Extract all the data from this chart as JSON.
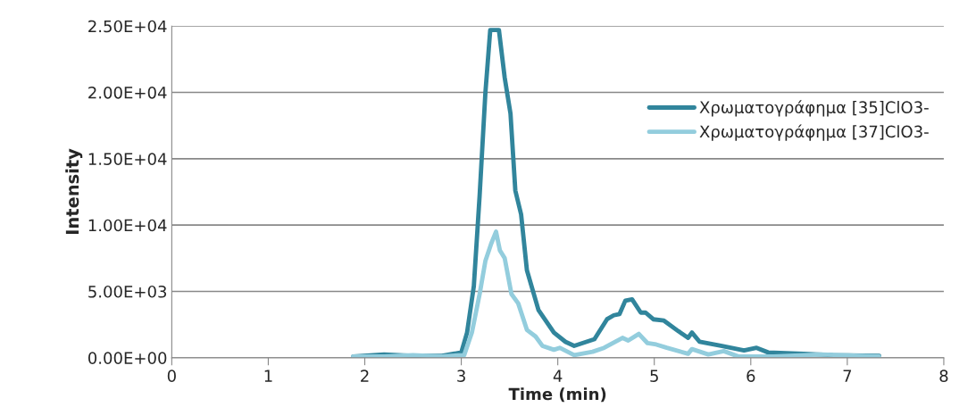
{
  "chart_data": {
    "type": "line",
    "xlabel": "Time (min)",
    "ylabel": "Intensity",
    "xlim": [
      0,
      8
    ],
    "xticks": [
      0,
      1,
      2,
      3,
      4,
      5,
      6,
      7,
      8
    ],
    "ylim": [
      0,
      25000
    ],
    "yticks": [
      {
        "value": 0,
        "label": "0.00E+00"
      },
      {
        "value": 5000,
        "label": "5.00E+03"
      },
      {
        "value": 10000,
        "label": "1.00E+04"
      },
      {
        "value": 15000,
        "label": "1.50E+04"
      },
      {
        "value": 20000,
        "label": "2.00E+04"
      },
      {
        "value": 25000,
        "label": "2.50E+04"
      }
    ],
    "grid": "y",
    "legend": "top right",
    "marker": "none",
    "line_style": "solid",
    "series": [
      {
        "name": "Χρωματογράφημα [35]ClO3-",
        "color": "#31859c",
        "x": [
          1.88,
          2.2,
          2.5,
          2.8,
          3.0,
          3.06,
          3.13,
          3.19,
          3.25,
          3.3,
          3.39,
          3.45,
          3.51,
          3.56,
          3.62,
          3.68,
          3.8,
          3.96,
          4.08,
          4.17,
          4.38,
          4.51,
          4.58,
          4.64,
          4.7,
          4.77,
          4.86,
          4.91,
          4.99,
          5.1,
          5.25,
          5.35,
          5.39,
          5.47,
          5.69,
          5.93,
          6.06,
          6.18,
          6.55,
          6.85,
          7.33
        ],
        "values": [
          100,
          250,
          150,
          150,
          400,
          1900,
          5400,
          12200,
          20000,
          24700,
          24700,
          21100,
          18400,
          12600,
          10800,
          6600,
          3600,
          1900,
          1200,
          900,
          1400,
          2900,
          3200,
          3300,
          4300,
          4400,
          3400,
          3400,
          2900,
          2800,
          2000,
          1500,
          1900,
          1200,
          900,
          550,
          750,
          400,
          300,
          200,
          150
        ]
      },
      {
        "name": "Χρωματογράφημα [37]ClO3-",
        "color": "#93cddd",
        "x": [
          1.88,
          2.2,
          2.5,
          2.8,
          3.03,
          3.11,
          3.19,
          3.25,
          3.31,
          3.36,
          3.4,
          3.45,
          3.52,
          3.59,
          3.68,
          3.77,
          3.84,
          3.96,
          4.02,
          4.17,
          4.36,
          4.48,
          4.67,
          4.73,
          4.84,
          4.93,
          5.02,
          5.13,
          5.35,
          5.39,
          5.56,
          5.72,
          5.87,
          6.24,
          6.73,
          7.33
        ],
        "values": [
          100,
          100,
          200,
          100,
          200,
          1900,
          4800,
          7300,
          8600,
          9500,
          8100,
          7500,
          4800,
          4100,
          2100,
          1600,
          900,
          600,
          750,
          200,
          450,
          750,
          1500,
          1300,
          1800,
          1100,
          1000,
          750,
          300,
          650,
          250,
          500,
          100,
          100,
          250,
          100
        ]
      }
    ]
  }
}
